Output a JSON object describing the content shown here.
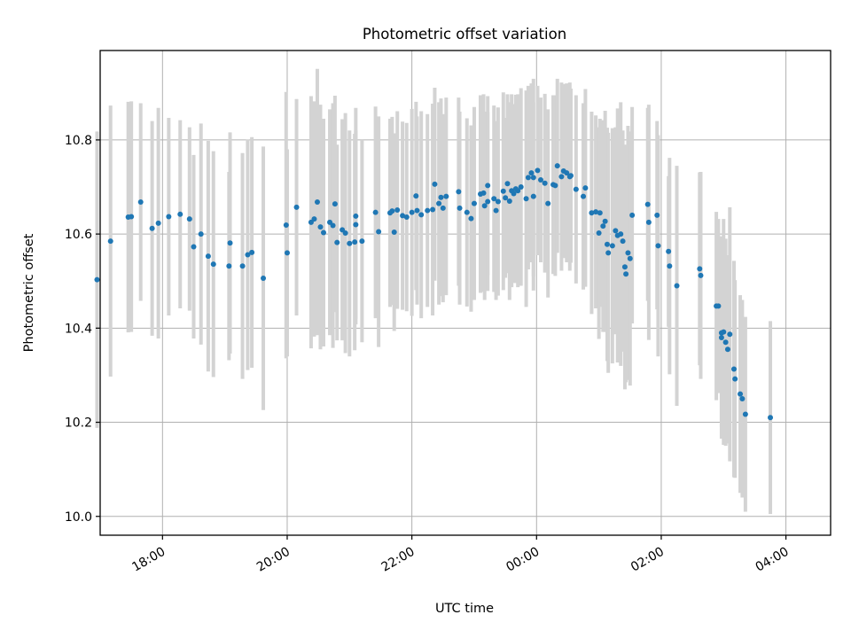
{
  "chart_data": {
    "type": "scatter",
    "title": "Photometric offset variation",
    "xlabel": "UTC time",
    "ylabel": "Photometric offset",
    "x_axis_kind": "time",
    "x_start": "17:00",
    "x_end": "04:43",
    "x_ticks": [
      "18:00",
      "20:00",
      "22:00",
      "00:00",
      "02:00",
      "04:00"
    ],
    "ylim": [
      9.96,
      10.99
    ],
    "y_ticks": [
      "10.0",
      "10.2",
      "10.4",
      "10.6",
      "10.8"
    ],
    "grid": true,
    "colors": {
      "point": "#1f77b4",
      "errorbar": "#d3d3d3",
      "grid": "#b0b0b0"
    },
    "points": [
      {
        "x": "16:57",
        "y": 10.503,
        "yerr": 0.315
      },
      {
        "x": "17:10",
        "y": 10.585,
        "yerr": 0.288
      },
      {
        "x": "17:27",
        "y": 10.636,
        "yerr": 0.245
      },
      {
        "x": "17:30",
        "y": 10.637,
        "yerr": 0.245
      },
      {
        "x": "17:39",
        "y": 10.668,
        "yerr": 0.21
      },
      {
        "x": "17:50",
        "y": 10.612,
        "yerr": 0.228
      },
      {
        "x": "17:56",
        "y": 10.623,
        "yerr": 0.245
      },
      {
        "x": "18:06",
        "y": 10.637,
        "yerr": 0.21
      },
      {
        "x": "18:17",
        "y": 10.642,
        "yerr": 0.2
      },
      {
        "x": "18:26",
        "y": 10.632,
        "yerr": 0.195
      },
      {
        "x": "18:30",
        "y": 10.573,
        "yerr": 0.195
      },
      {
        "x": "18:37",
        "y": 10.6,
        "yerr": 0.235
      },
      {
        "x": "18:44",
        "y": 10.553,
        "yerr": 0.245
      },
      {
        "x": "18:49",
        "y": 10.536,
        "yerr": 0.24
      },
      {
        "x": "19:04",
        "y": 10.532,
        "yerr": 0.2
      },
      {
        "x": "19:05",
        "y": 10.581,
        "yerr": 0.235
      },
      {
        "x": "19:17",
        "y": 10.532,
        "yerr": 0.24
      },
      {
        "x": "19:22",
        "y": 10.556,
        "yerr": 0.245
      },
      {
        "x": "19:26",
        "y": 10.561,
        "yerr": 0.245
      },
      {
        "x": "19:37",
        "y": 10.506,
        "yerr": 0.28
      },
      {
        "x": "19:59",
        "y": 10.619,
        "yerr": 0.283
      },
      {
        "x": "20:00",
        "y": 10.56,
        "yerr": 0.22
      },
      {
        "x": "20:09",
        "y": 10.657,
        "yerr": 0.23
      },
      {
        "x": "20:23",
        "y": 10.625,
        "yerr": 0.268
      },
      {
        "x": "20:26",
        "y": 10.632,
        "yerr": 0.25
      },
      {
        "x": "20:29",
        "y": 10.668,
        "yerr": 0.283
      },
      {
        "x": "20:32",
        "y": 10.615,
        "yerr": 0.26
      },
      {
        "x": "20:35",
        "y": 10.603,
        "yerr": 0.242
      },
      {
        "x": "20:41",
        "y": 10.625,
        "yerr": 0.24
      },
      {
        "x": "20:44",
        "y": 10.618,
        "yerr": 0.26
      },
      {
        "x": "20:46",
        "y": 10.664,
        "yerr": 0.23
      },
      {
        "x": "20:48",
        "y": 10.582,
        "yerr": 0.208
      },
      {
        "x": "20:53",
        "y": 10.609,
        "yerr": 0.235
      },
      {
        "x": "20:56",
        "y": 10.602,
        "yerr": 0.255
      },
      {
        "x": "21:00",
        "y": 10.58,
        "yerr": 0.24
      },
      {
        "x": "21:05",
        "y": 10.583,
        "yerr": 0.23
      },
      {
        "x": "21:06",
        "y": 10.638,
        "yerr": 0.23
      },
      {
        "x": "21:06",
        "y": 10.62,
        "yerr": 0.2
      },
      {
        "x": "21:12",
        "y": 10.585,
        "yerr": 0.215
      },
      {
        "x": "21:25",
        "y": 10.646,
        "yerr": 0.225
      },
      {
        "x": "21:28",
        "y": 10.605,
        "yerr": 0.245
      },
      {
        "x": "21:39",
        "y": 10.645,
        "yerr": 0.2
      },
      {
        "x": "21:41",
        "y": 10.649,
        "yerr": 0.2
      },
      {
        "x": "21:43",
        "y": 10.604,
        "yerr": 0.21
      },
      {
        "x": "21:46",
        "y": 10.651,
        "yerr": 0.21
      },
      {
        "x": "21:51",
        "y": 10.639,
        "yerr": 0.2
      },
      {
        "x": "21:55",
        "y": 10.636,
        "yerr": 0.2
      },
      {
        "x": "22:00",
        "y": 10.646,
        "yerr": 0.22
      },
      {
        "x": "22:04",
        "y": 10.681,
        "yerr": 0.2
      },
      {
        "x": "22:05",
        "y": 10.65,
        "yerr": 0.2
      },
      {
        "x": "22:09",
        "y": 10.641,
        "yerr": 0.22
      },
      {
        "x": "22:15",
        "y": 10.65,
        "yerr": 0.205
      },
      {
        "x": "22:20",
        "y": 10.652,
        "yerr": 0.225
      },
      {
        "x": "22:22",
        "y": 10.706,
        "yerr": 0.205
      },
      {
        "x": "22:26",
        "y": 10.665,
        "yerr": 0.215
      },
      {
        "x": "22:28",
        "y": 10.678,
        "yerr": 0.21
      },
      {
        "x": "22:30",
        "y": 10.655,
        "yerr": 0.2
      },
      {
        "x": "22:33",
        "y": 10.68,
        "yerr": 0.21
      },
      {
        "x": "22:45",
        "y": 10.69,
        "yerr": 0.2
      },
      {
        "x": "22:46",
        "y": 10.655,
        "yerr": 0.205
      },
      {
        "x": "22:53",
        "y": 10.646,
        "yerr": 0.2
      },
      {
        "x": "22:57",
        "y": 10.633,
        "yerr": 0.198
      },
      {
        "x": "23:00",
        "y": 10.665,
        "yerr": 0.205
      },
      {
        "x": "23:06",
        "y": 10.685,
        "yerr": 0.21
      },
      {
        "x": "23:09",
        "y": 10.687,
        "yerr": 0.21
      },
      {
        "x": "23:10",
        "y": 10.66,
        "yerr": 0.2
      },
      {
        "x": "23:13",
        "y": 10.703,
        "yerr": 0.19
      },
      {
        "x": "23:13",
        "y": 10.669,
        "yerr": 0.19
      },
      {
        "x": "23:19",
        "y": 10.675,
        "yerr": 0.198
      },
      {
        "x": "23:21",
        "y": 10.65,
        "yerr": 0.19
      },
      {
        "x": "23:23",
        "y": 10.669,
        "yerr": 0.2
      },
      {
        "x": "23:28",
        "y": 10.691,
        "yerr": 0.21
      },
      {
        "x": "23:30",
        "y": 10.677,
        "yerr": 0.17
      },
      {
        "x": "23:32",
        "y": 10.707,
        "yerr": 0.19
      },
      {
        "x": "23:34",
        "y": 10.67,
        "yerr": 0.21
      },
      {
        "x": "23:36",
        "y": 10.692,
        "yerr": 0.205
      },
      {
        "x": "23:38",
        "y": 10.686,
        "yerr": 0.19
      },
      {
        "x": "23:40",
        "y": 10.696,
        "yerr": 0.2
      },
      {
        "x": "23:42",
        "y": 10.692,
        "yerr": 0.205
      },
      {
        "x": "23:45",
        "y": 10.7,
        "yerr": 0.21
      },
      {
        "x": "23:50",
        "y": 10.675,
        "yerr": 0.23
      },
      {
        "x": "23:52",
        "y": 10.72,
        "yerr": 0.195
      },
      {
        "x": "23:55",
        "y": 10.73,
        "yerr": 0.19
      },
      {
        "x": "23:57",
        "y": 10.72,
        "yerr": 0.21
      },
      {
        "x": "23:57",
        "y": 10.68,
        "yerr": 0.2
      },
      {
        "x": "00:01",
        "y": 10.735,
        "yerr": 0.18
      },
      {
        "x": "00:04",
        "y": 10.715,
        "yerr": 0.175
      },
      {
        "x": "00:08",
        "y": 10.708,
        "yerr": 0.19
      },
      {
        "x": "00:11",
        "y": 10.665,
        "yerr": 0.2
      },
      {
        "x": "00:16",
        "y": 10.705,
        "yerr": 0.19
      },
      {
        "x": "00:18",
        "y": 10.703,
        "yerr": 0.192
      },
      {
        "x": "00:20",
        "y": 10.745,
        "yerr": 0.185
      },
      {
        "x": "00:24",
        "y": 10.722,
        "yerr": 0.2
      },
      {
        "x": "00:26",
        "y": 10.734,
        "yerr": 0.185
      },
      {
        "x": "00:29",
        "y": 10.73,
        "yerr": 0.19
      },
      {
        "x": "00:32",
        "y": 10.722,
        "yerr": 0.2
      },
      {
        "x": "00:33",
        "y": 10.724,
        "yerr": 0.185
      },
      {
        "x": "00:38",
        "y": 10.695,
        "yerr": 0.2
      },
      {
        "x": "00:45",
        "y": 10.68,
        "yerr": 0.198
      },
      {
        "x": "00:47",
        "y": 10.698,
        "yerr": 0.21
      },
      {
        "x": "00:53",
        "y": 10.645,
        "yerr": 0.215
      },
      {
        "x": "00:57",
        "y": 10.647,
        "yerr": 0.205
      },
      {
        "x": "01:00",
        "y": 10.602,
        "yerr": 0.225
      },
      {
        "x": "01:01",
        "y": 10.645,
        "yerr": 0.2
      },
      {
        "x": "01:04",
        "y": 10.617,
        "yerr": 0.225
      },
      {
        "x": "01:06",
        "y": 10.627,
        "yerr": 0.235
      },
      {
        "x": "01:08",
        "y": 10.578,
        "yerr": 0.248
      },
      {
        "x": "01:09",
        "y": 10.56,
        "yerr": 0.255
      },
      {
        "x": "01:13",
        "y": 10.575,
        "yerr": 0.25
      },
      {
        "x": "01:16",
        "y": 10.607,
        "yerr": 0.22
      },
      {
        "x": "01:18",
        "y": 10.597,
        "yerr": 0.27
      },
      {
        "x": "01:21",
        "y": 10.6,
        "yerr": 0.28
      },
      {
        "x": "01:23",
        "y": 10.585,
        "yerr": 0.235
      },
      {
        "x": "01:25",
        "y": 10.53,
        "yerr": 0.26
      },
      {
        "x": "01:26",
        "y": 10.515,
        "yerr": 0.23
      },
      {
        "x": "01:28",
        "y": 10.56,
        "yerr": 0.27
      },
      {
        "x": "01:30",
        "y": 10.548,
        "yerr": 0.27
      },
      {
        "x": "01:32",
        "y": 10.64,
        "yerr": 0.23
      },
      {
        "x": "01:47",
        "y": 10.663,
        "yerr": 0.205
      },
      {
        "x": "01:48",
        "y": 10.625,
        "yerr": 0.25
      },
      {
        "x": "01:56",
        "y": 10.64,
        "yerr": 0.2
      },
      {
        "x": "01:57",
        "y": 10.575,
        "yerr": 0.235
      },
      {
        "x": "02:07",
        "y": 10.563,
        "yerr": 0.16
      },
      {
        "x": "02:08",
        "y": 10.532,
        "yerr": 0.23
      },
      {
        "x": "02:15",
        "y": 10.49,
        "yerr": 0.255
      },
      {
        "x": "02:37",
        "y": 10.526,
        "yerr": 0.205
      },
      {
        "x": "02:38",
        "y": 10.512,
        "yerr": 0.22
      },
      {
        "x": "02:53",
        "y": 10.447,
        "yerr": 0.2
      },
      {
        "x": "02:55",
        "y": 10.447,
        "yerr": 0.185
      },
      {
        "x": "02:58",
        "y": 10.38,
        "yerr": 0.215
      },
      {
        "x": "02:58",
        "y": 10.39,
        "yerr": 0.2
      },
      {
        "x": "03:00",
        "y": 10.392,
        "yerr": 0.24
      },
      {
        "x": "03:02",
        "y": 10.37,
        "yerr": 0.22
      },
      {
        "x": "03:04",
        "y": 10.355,
        "yerr": 0.2
      },
      {
        "x": "03:06",
        "y": 10.387,
        "yerr": 0.27
      },
      {
        "x": "03:10",
        "y": 10.313,
        "yerr": 0.23
      },
      {
        "x": "03:11",
        "y": 10.292,
        "yerr": 0.21
      },
      {
        "x": "03:16",
        "y": 10.26,
        "yerr": 0.21
      },
      {
        "x": "03:18",
        "y": 10.25,
        "yerr": 0.21
      },
      {
        "x": "03:21",
        "y": 10.217,
        "yerr": 0.207
      },
      {
        "x": "03:45",
        "y": 10.21,
        "yerr": 0.205
      }
    ]
  }
}
